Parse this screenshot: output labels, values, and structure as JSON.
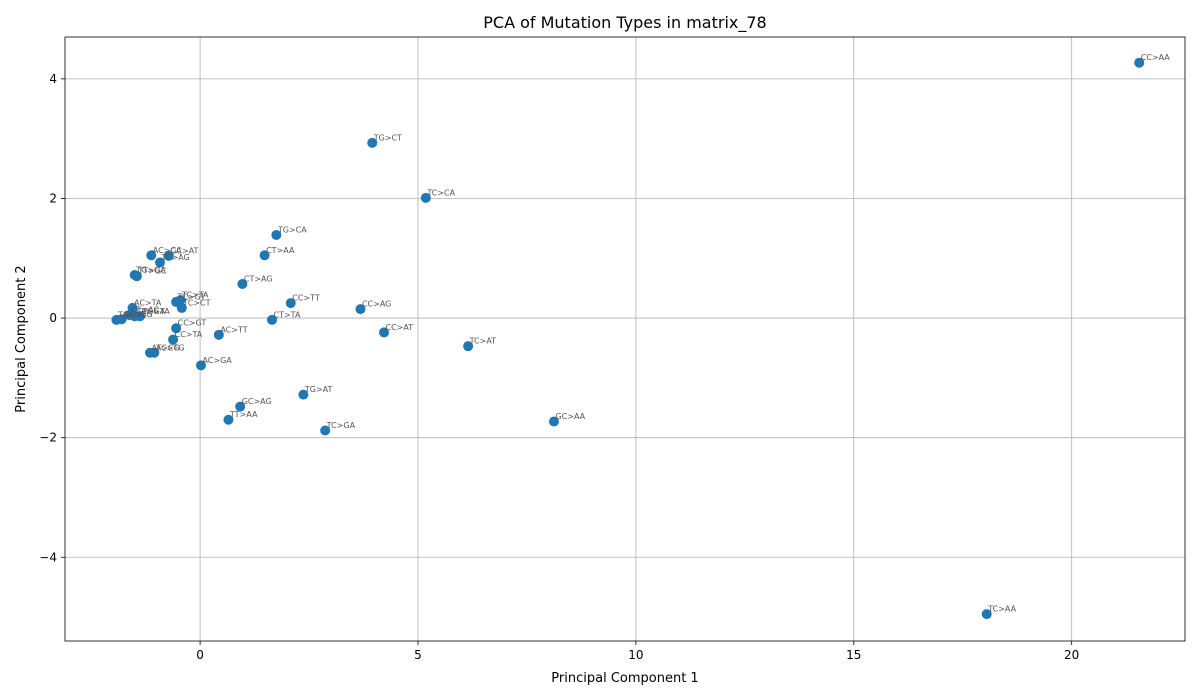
{
  "chart_data": {
    "type": "scatter",
    "title": "PCA of Mutation Types in matrix_78",
    "xlabel": "Principal Component 1",
    "ylabel": "Principal Component 2",
    "xlim": [
      -3.1,
      22.6
    ],
    "ylim": [
      -5.4,
      4.7
    ],
    "x_ticks": [
      0,
      5,
      10,
      15,
      20
    ],
    "y_ticks": [
      -4,
      -2,
      0,
      2,
      4
    ],
    "tick_label_minus": "−",
    "grid": true,
    "legend": "none",
    "marker_color": "#1f77b4",
    "label_color": "#555555",
    "points": [
      {
        "label": "CC>AA",
        "x": 21.55,
        "y": 4.27
      },
      {
        "label": "TC>AA",
        "x": 18.05,
        "y": -4.95
      },
      {
        "label": "GC>AA",
        "x": 8.12,
        "y": -1.73
      },
      {
        "label": "TC>AT",
        "x": 6.15,
        "y": -0.47
      },
      {
        "label": "TC>CA",
        "x": 5.18,
        "y": 2.01
      },
      {
        "label": "CC>AT",
        "x": 4.22,
        "y": -0.24
      },
      {
        "label": "TG>CT",
        "x": 3.95,
        "y": 2.93
      },
      {
        "label": "CC>AG",
        "x": 3.68,
        "y": 0.15
      },
      {
        "label": "TC>GA",
        "x": 2.87,
        "y": -1.88
      },
      {
        "label": "TG>AT",
        "x": 2.37,
        "y": -1.28
      },
      {
        "label": "CC>TT",
        "x": 2.08,
        "y": 0.25
      },
      {
        "label": "TG>CA",
        "x": 1.75,
        "y": 1.39
      },
      {
        "label": "CT>TA",
        "x": 1.65,
        "y": -0.03
      },
      {
        "label": "CT>AA",
        "x": 1.48,
        "y": 1.05
      },
      {
        "label": "CT>AG",
        "x": 0.97,
        "y": 0.57
      },
      {
        "label": "GC>AG",
        "x": 0.92,
        "y": -1.48
      },
      {
        "label": "TT>AA",
        "x": 0.65,
        "y": -1.7
      },
      {
        "label": "AC>TT",
        "x": 0.43,
        "y": -0.28
      },
      {
        "label": "AC>GA",
        "x": 0.02,
        "y": -0.79
      },
      {
        "label": "TC>CT",
        "x": -0.42,
        "y": 0.17
      },
      {
        "label": "TC>TA",
        "x": -0.45,
        "y": 0.3
      },
      {
        "label": "TC>GT",
        "x": -0.55,
        "y": 0.27
      },
      {
        "label": "CC>GT",
        "x": -0.55,
        "y": -0.17
      },
      {
        "label": "CC>TA",
        "x": -0.62,
        "y": -0.36
      },
      {
        "label": "GC>AT",
        "x": -0.72,
        "y": 1.04
      },
      {
        "label": "TC>AG",
        "x": -0.92,
        "y": 0.93
      },
      {
        "label": "AC>CA",
        "x": -1.12,
        "y": 1.05
      },
      {
        "label": "AC>TG",
        "x": -1.05,
        "y": -0.58
      },
      {
        "label": "AT>CG",
        "x": -1.15,
        "y": -0.58
      },
      {
        "label": "AC>TA",
        "x": -1.55,
        "y": 0.17
      },
      {
        "label": "TT>GC",
        "x": -1.45,
        "y": 0.7
      },
      {
        "label": "TG>GA",
        "x": -1.5,
        "y": 0.72
      },
      {
        "label": "CG>TA",
        "x": -1.38,
        "y": 0.03
      },
      {
        "label": "CT>GA",
        "x": -1.5,
        "y": 0.03
      },
      {
        "label": "CT>AC",
        "x": -1.62,
        "y": 0.05
      },
      {
        "label": "GC>TG",
        "x": -1.8,
        "y": -0.02
      },
      {
        "label": "TA>GG",
        "x": -1.92,
        "y": -0.03
      }
    ]
  }
}
